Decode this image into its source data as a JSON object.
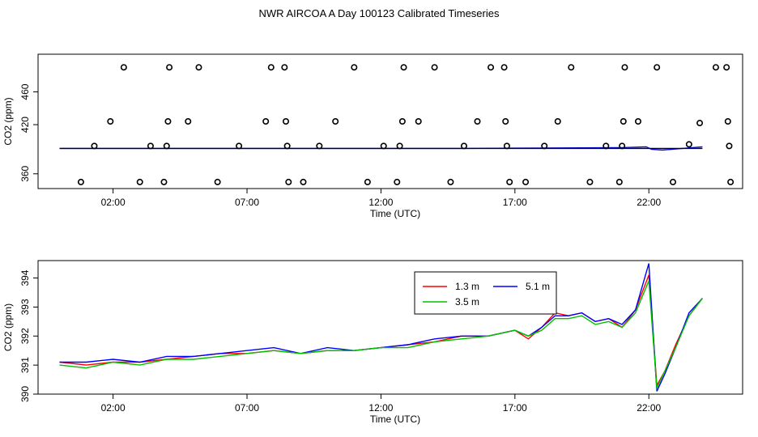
{
  "title": "NWR AIRCOA A  Day 100123  Calibrated Timeseries",
  "chart_data": [
    {
      "type": "line",
      "panel": "top",
      "xlabel": "Time (UTC)",
      "ylabel": "CO2 (ppm)",
      "x_unit": "hours UTC",
      "xlim": [
        -0.8,
        25.5
      ],
      "ylim": [
        342,
        506
      ],
      "xticks": [
        2,
        7,
        12,
        17,
        22
      ],
      "xtick_labels": [
        "02:00",
        "07:00",
        "12:00",
        "17:00",
        "22:00"
      ],
      "yticks": [
        360,
        420,
        460
      ],
      "ytick_labels": [
        "360",
        "420",
        "460"
      ],
      "grid": false,
      "legend": "none",
      "series": [
        {
          "color": "#0000ff",
          "x": [
            0,
            3,
            6,
            9,
            12,
            15,
            18,
            21,
            21.9,
            22.1,
            22.5,
            24.0
          ],
          "values": [
            391,
            391,
            391,
            391,
            391,
            391,
            391.5,
            392,
            393,
            390,
            389,
            393
          ]
        },
        {
          "color": "#000000",
          "x": [
            0,
            24
          ],
          "values": [
            391,
            391
          ]
        }
      ],
      "markers": {
        "style": "open-circle",
        "color": "#000000",
        "points": [
          [
            0.8,
            350
          ],
          [
            1.3,
            394
          ],
          [
            1.9,
            424
          ],
          [
            2.4,
            490
          ],
          [
            3.0,
            350
          ],
          [
            3.4,
            394
          ],
          [
            3.9,
            350
          ],
          [
            4.0,
            394
          ],
          [
            4.05,
            424
          ],
          [
            4.1,
            490
          ],
          [
            4.8,
            424
          ],
          [
            5.2,
            490
          ],
          [
            5.9,
            350
          ],
          [
            6.7,
            394
          ],
          [
            7.7,
            424
          ],
          [
            7.9,
            490
          ],
          [
            8.4,
            490
          ],
          [
            8.45,
            424
          ],
          [
            8.5,
            394
          ],
          [
            8.55,
            350
          ],
          [
            9.1,
            350
          ],
          [
            9.7,
            394
          ],
          [
            10.3,
            424
          ],
          [
            11.0,
            490
          ],
          [
            11.5,
            350
          ],
          [
            12.1,
            394
          ],
          [
            12.6,
            350
          ],
          [
            12.7,
            394
          ],
          [
            12.8,
            424
          ],
          [
            12.85,
            490
          ],
          [
            13.4,
            424
          ],
          [
            14.0,
            490
          ],
          [
            14.6,
            350
          ],
          [
            15.1,
            394
          ],
          [
            15.6,
            424
          ],
          [
            16.1,
            490
          ],
          [
            16.6,
            490
          ],
          [
            16.65,
            424
          ],
          [
            16.7,
            394
          ],
          [
            16.8,
            350
          ],
          [
            17.4,
            350
          ],
          [
            18.1,
            394
          ],
          [
            18.6,
            424
          ],
          [
            19.1,
            490
          ],
          [
            19.8,
            350
          ],
          [
            20.4,
            394
          ],
          [
            20.9,
            350
          ],
          [
            21.0,
            394
          ],
          [
            21.05,
            424
          ],
          [
            21.1,
            490
          ],
          [
            21.6,
            424
          ],
          [
            22.3,
            490
          ],
          [
            22.9,
            350
          ],
          [
            23.5,
            396
          ],
          [
            23.9,
            422
          ],
          [
            24.5,
            490
          ],
          [
            24.9,
            490
          ],
          [
            24.95,
            424
          ],
          [
            25.0,
            394
          ],
          [
            25.05,
            350
          ]
        ]
      }
    },
    {
      "type": "line",
      "panel": "bottom",
      "xlabel": "Time (UTC)",
      "ylabel": "CO2 (ppm)",
      "x_unit": "hours UTC",
      "xlim": [
        -0.8,
        25.5
      ],
      "ylim": [
        390,
        394.6
      ],
      "xticks": [
        2,
        7,
        12,
        17,
        22
      ],
      "xtick_labels": [
        "02:00",
        "07:00",
        "12:00",
        "17:00",
        "22:00"
      ],
      "yticks": [
        390,
        391,
        392,
        393,
        394
      ],
      "ytick_labels": [
        "390",
        "391",
        "392",
        "393",
        "394"
      ],
      "grid": false,
      "legend": "top-right",
      "series": [
        {
          "name": "1.3 m",
          "color": "#ff0000",
          "x": [
            0,
            1,
            2,
            3,
            4,
            5,
            6,
            7,
            8,
            9,
            10,
            11,
            12,
            13,
            14,
            15,
            16,
            17,
            17.5,
            18,
            18.5,
            19,
            19.5,
            20,
            20.5,
            21,
            21.5,
            22,
            22.3,
            22.6,
            23,
            23.5,
            24
          ],
          "values": [
            391.1,
            391.0,
            391.1,
            391.1,
            391.2,
            391.3,
            391.4,
            391.4,
            391.5,
            391.4,
            391.5,
            391.5,
            391.6,
            391.7,
            391.8,
            392.0,
            392.0,
            392.2,
            391.9,
            392.3,
            392.8,
            392.7,
            392.8,
            392.5,
            392.6,
            392.3,
            392.9,
            394.1,
            390.3,
            390.8,
            391.7,
            392.7,
            393.3
          ]
        },
        {
          "name": "5.1 m",
          "color": "#0000ff",
          "x": [
            0,
            1,
            2,
            3,
            4,
            5,
            6,
            7,
            8,
            9,
            10,
            11,
            12,
            13,
            14,
            15,
            16,
            17,
            17.5,
            18,
            18.5,
            19,
            19.5,
            20,
            20.5,
            21,
            21.5,
            22,
            22.3,
            22.6,
            23,
            23.5,
            24
          ],
          "values": [
            391.1,
            391.1,
            391.2,
            391.1,
            391.3,
            391.3,
            391.4,
            391.5,
            391.6,
            391.4,
            391.6,
            391.5,
            391.6,
            391.7,
            391.9,
            392.0,
            392.0,
            392.2,
            392.0,
            392.3,
            392.7,
            392.7,
            392.8,
            392.5,
            392.6,
            392.4,
            392.9,
            394.5,
            390.1,
            390.7,
            391.6,
            392.8,
            393.3
          ]
        },
        {
          "name": "3.5 m",
          "color": "#00c000",
          "x": [
            0,
            1,
            2,
            3,
            4,
            5,
            6,
            7,
            8,
            9,
            10,
            11,
            12,
            13,
            14,
            15,
            16,
            17,
            17.5,
            18,
            18.5,
            19,
            19.5,
            20,
            20.5,
            21,
            21.5,
            22,
            22.3,
            22.6,
            23,
            23.5,
            24
          ],
          "values": [
            391.0,
            390.9,
            391.1,
            391.0,
            391.2,
            391.2,
            391.3,
            391.4,
            391.5,
            391.4,
            391.5,
            391.5,
            391.6,
            391.6,
            391.8,
            391.9,
            392.0,
            392.2,
            392.0,
            392.2,
            392.6,
            392.6,
            392.7,
            392.4,
            392.5,
            392.3,
            392.8,
            393.9,
            390.2,
            390.8,
            391.6,
            392.7,
            393.3
          ]
        }
      ]
    }
  ]
}
